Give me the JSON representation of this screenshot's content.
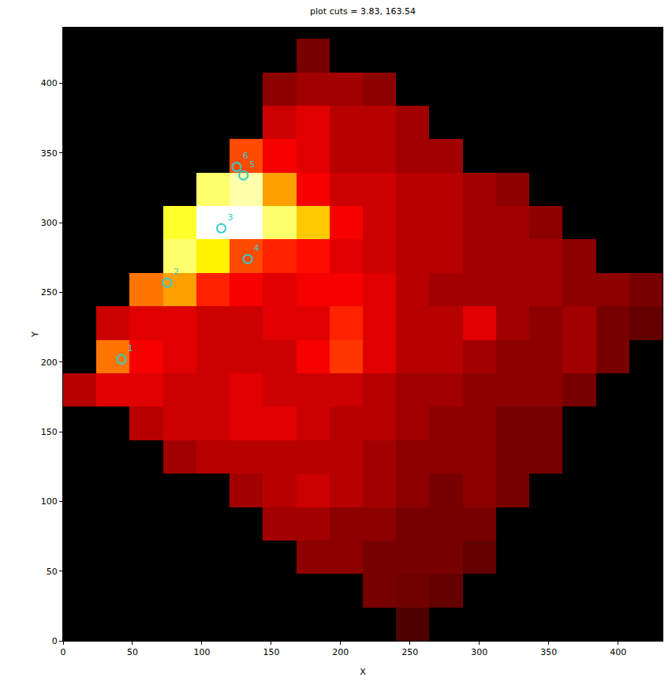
{
  "chart_data": {
    "type": "heatmap",
    "title": "plot cuts = 3.83, 163.54",
    "x_label": "X",
    "y_label": "Y",
    "xlim": [
      0,
      432
    ],
    "ylim": [
      0,
      440
    ],
    "xticks": [
      0,
      50,
      100,
      150,
      200,
      250,
      300,
      350,
      400
    ],
    "yticks": [
      0,
      50,
      100,
      150,
      200,
      250,
      300,
      350,
      400
    ],
    "grid": false,
    "color": "hot",
    "color_range": [
      3.83,
      163.54
    ],
    "x": [
      12,
      36,
      60,
      84,
      108,
      132,
      156,
      180,
      204,
      228,
      252,
      276,
      300,
      324,
      348,
      372,
      396,
      420
    ],
    "y": [
      12,
      36,
      60,
      84,
      108,
      132,
      156,
      180,
      204,
      228,
      252,
      276,
      300,
      324,
      348,
      372,
      396,
      420
    ],
    "z": [
      [
        null,
        null,
        null,
        null,
        null,
        null,
        null,
        null,
        null,
        null,
        20,
        null,
        null,
        null,
        null,
        null,
        null,
        null
      ],
      [
        null,
        null,
        null,
        null,
        null,
        null,
        null,
        null,
        null,
        30,
        28,
        25,
        null,
        null,
        null,
        null,
        null,
        null
      ],
      [
        null,
        null,
        null,
        null,
        null,
        null,
        null,
        35,
        35,
        30,
        30,
        30,
        25,
        null,
        null,
        null,
        null,
        null
      ],
      [
        null,
        null,
        null,
        null,
        null,
        null,
        40,
        40,
        35,
        35,
        30,
        30,
        30,
        null,
        null,
        null,
        null,
        null
      ],
      [
        null,
        null,
        null,
        null,
        null,
        40,
        45,
        50,
        45,
        40,
        35,
        30,
        35,
        30,
        null,
        null,
        null,
        null
      ],
      [
        null,
        null,
        null,
        40,
        45,
        45,
        45,
        45,
        45,
        40,
        35,
        35,
        35,
        30,
        30,
        null,
        null,
        null
      ],
      [
        null,
        null,
        45,
        50,
        50,
        55,
        55,
        50,
        45,
        45,
        40,
        35,
        35,
        30,
        30,
        null,
        null,
        null
      ],
      [
        45,
        55,
        55,
        50,
        50,
        55,
        50,
        50,
        50,
        45,
        40,
        40,
        35,
        35,
        35,
        30,
        null,
        null
      ],
      [
        null,
        90,
        60,
        55,
        50,
        50,
        50,
        60,
        75,
        55,
        45,
        45,
        40,
        35,
        35,
        40,
        30,
        null
      ],
      [
        null,
        50,
        55,
        55,
        50,
        50,
        55,
        55,
        70,
        55,
        45,
        45,
        55,
        40,
        35,
        40,
        30,
        25
      ],
      [
        null,
        null,
        90,
        100,
        70,
        60,
        55,
        60,
        60,
        55,
        45,
        40,
        40,
        40,
        40,
        35,
        35,
        30
      ],
      [
        null,
        null,
        null,
        140,
        120,
        80,
        70,
        65,
        55,
        50,
        45,
        45,
        40,
        40,
        40,
        35,
        null,
        null
      ],
      [
        null,
        null,
        null,
        130,
        170,
        165,
        140,
        110,
        60,
        50,
        45,
        45,
        40,
        40,
        35,
        null,
        null,
        null
      ],
      [
        null,
        null,
        null,
        null,
        140,
        150,
        100,
        60,
        50,
        50,
        45,
        45,
        40,
        35,
        null,
        null,
        null,
        null
      ],
      [
        null,
        null,
        null,
        null,
        null,
        80,
        60,
        55,
        45,
        45,
        40,
        40,
        null,
        null,
        null,
        null,
        null,
        null
      ],
      [
        null,
        null,
        null,
        null,
        null,
        null,
        50,
        55,
        45,
        45,
        40,
        null,
        null,
        null,
        null,
        null,
        null,
        null
      ],
      [
        null,
        null,
        null,
        null,
        null,
        null,
        35,
        40,
        40,
        35,
        null,
        null,
        null,
        null,
        null,
        null,
        null,
        null
      ],
      [
        null,
        null,
        null,
        null,
        null,
        null,
        null,
        30,
        null,
        null,
        null,
        null,
        null,
        null,
        null,
        null,
        null,
        null
      ]
    ],
    "series": [
      {
        "type": "scatter",
        "marker": "circle-open",
        "color": "#33cccc",
        "x": [
          42,
          75,
          114,
          133,
          130,
          125
        ],
        "y": [
          202,
          257,
          296,
          274,
          334,
          340
        ],
        "labels": [
          "1",
          "2",
          "3",
          "4",
          "5",
          "6"
        ]
      }
    ]
  }
}
